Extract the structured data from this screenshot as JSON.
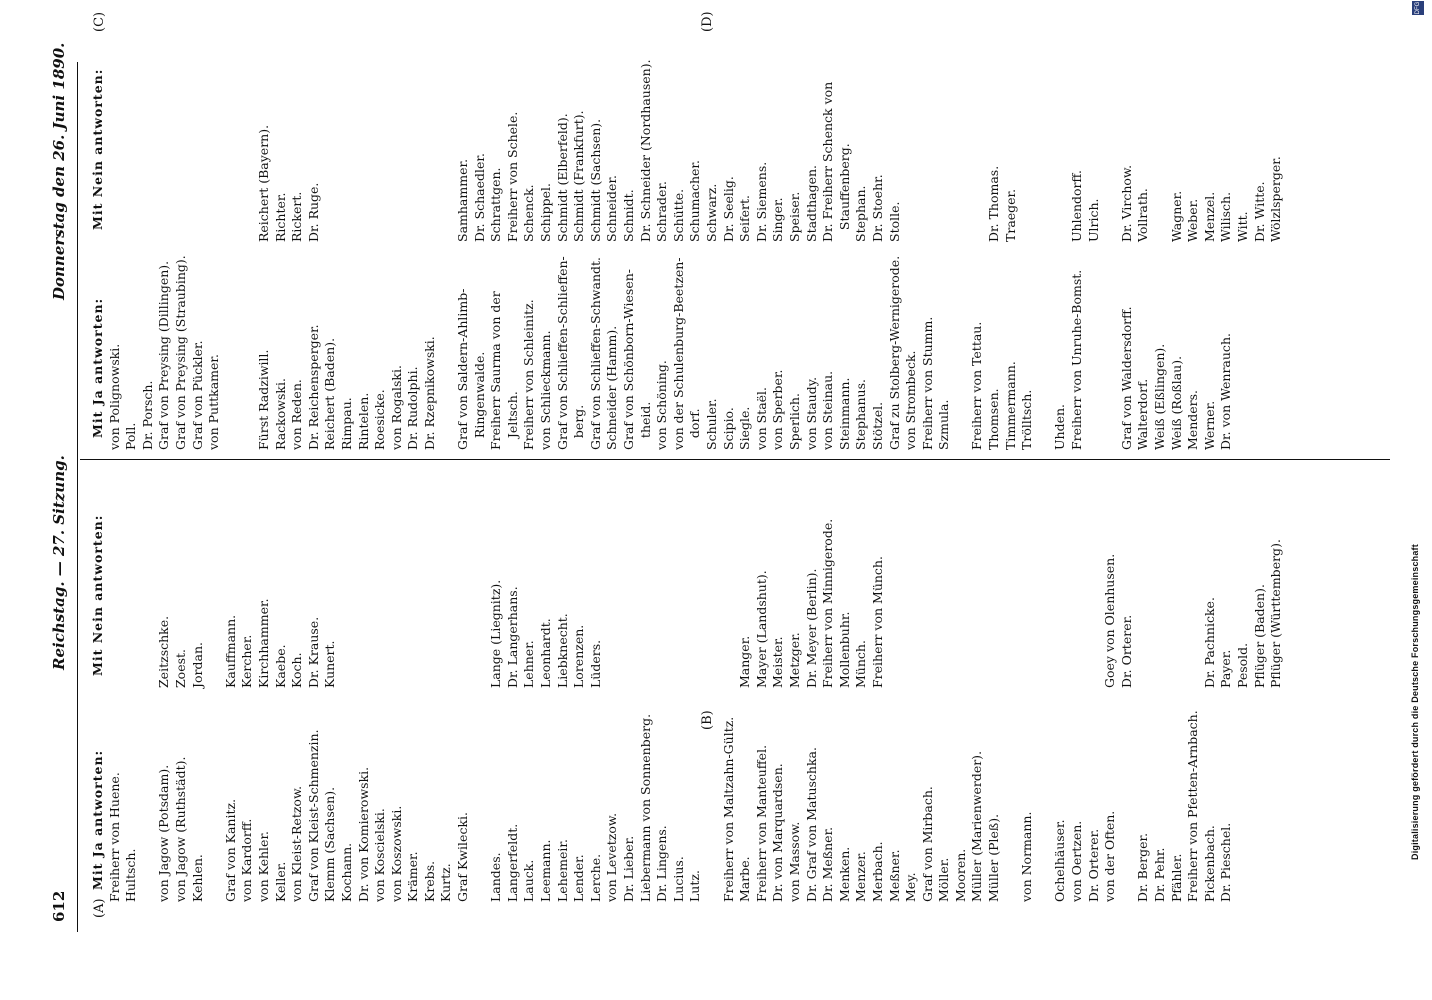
{
  "header": {
    "page_number": "612",
    "running_head": "Reichstag. — 27. Sitzung.",
    "date": "Donnerstag den 26. Juni 1890."
  },
  "markers": {
    "a": "(A)",
    "b": "(B)",
    "c": "(C)",
    "d": "(D)"
  },
  "columns": [
    {
      "heading": "Mit Ja antworten:",
      "lines": [
        "Freiherr von Huene.",
        "Hultsch.",
        "",
        "von Jagow (Potsdam).",
        "von Jagow (Ruthstädt).",
        "Kehlen.",
        "",
        "Graf von Kanitz.",
        "von Kardorff.",
        "von Kehler.",
        "Keller.",
        "von Kleist-Retzow.",
        "Graf von Kleist-Schmenzin.",
        "Klemm (Sachsen).",
        "Kochann.",
        "Dr. von Komierowski.",
        "von Koscielski.",
        "von Koszowski.",
        "Krämer.",
        "Krebs.",
        "Kurtz.",
        "Graf Kwilecki.",
        "",
        "Landes.",
        "Langerfeldt.",
        "Lauck.",
        "Leemann.",
        "Lehemeir.",
        "Lender.",
        "Lerche.",
        "von Levetzow.",
        "Dr. Lieber.",
        "Liebermann von Sonnenberg.",
        "Dr. Lingens.",
        "Lucius.",
        "Lutz.",
        "",
        "Freiherr von Maltzahn-Gültz.",
        "Marbe.",
        "Freiherr von Manteuffel.",
        "Dr. von Marquardsen.",
        "von Massow.",
        "Dr. Graf von Matuschka.",
        "Dr. Meßner.",
        "Menken.",
        "Menzer.",
        "Merbach.",
        "Meßner.",
        "Mey.",
        "Graf von Mirbach.",
        "Möller.",
        "Mooren.",
        "Müller (Marienwerder).",
        "Müller (Pleß).",
        "",
        "von Normann.",
        "",
        "Ochelhäuser.",
        "von Oertzen.",
        "Dr. Orterer.",
        "von der Often.",
        "",
        "Dr. Berger.",
        "Dr. Pehr.",
        "Pfähler.",
        "Freiherr von Pfetten-Arnbach.",
        "Pickenbach.",
        "Dr. Pieschel."
      ]
    },
    {
      "heading": "Mit Nein antworten:",
      "lines": [
        "",
        "",
        "",
        "Zeitzschke.",
        "Zoest.",
        "Jordan.",
        "",
        "Kauffmann.",
        "Kercher.",
        "Kirchhammer.",
        "Kaebe.",
        "Koch.",
        "Dr. Krause.",
        "Kunert.",
        "",
        "",
        "",
        "",
        "",
        "",
        "",
        "",
        "",
        "Lange (Liegnitz).",
        "Dr. Langerhans.",
        "Lehner.",
        "Leonhardt.",
        "Liebknecht.",
        "Lorenzen.",
        "Lüders.",
        "",
        "",
        "",
        "",
        "",
        "",
        "",
        "",
        "Manger.",
        "Mayer (Landshut).",
        "Meister.",
        "Metzger.",
        "Dr. Meyer (Berlin).",
        "Freiherr von Minnigerode.",
        "Mollenbuhr.",
        "Münch.",
        "Freiherr von Münch.",
        "",
        "",
        "",
        "",
        "",
        "",
        "",
        "",
        "",
        "",
        "",
        "",
        "",
        "Goey von Olenhusen.",
        "Dr. Orterer.",
        "",
        "",
        "",
        "",
        "Dr. Pachnicke.",
        "Payer.",
        "Pesold.",
        "Pflüger (Baden).",
        "Pflüger (Württemberg)."
      ]
    },
    {
      "heading": "Mit Ja antworten:",
      "lines": [
        "von Polignowski.",
        "Poll.",
        "Dr. Porsch.",
        "Graf von Preysing (Dillingen).",
        "Graf von Preysing (Straubing).",
        "Graf von Pückler.",
        "von Puttkamer.",
        "",
        "",
        "Fürst Radziwill.",
        "Rackowski.",
        "von Reden.",
        "Dr. Reichensperger.",
        "Reichert (Baden).",
        "Rimpau.",
        "Rintelen.",
        "Roesicke.",
        "von Rogalski.",
        "Dr. Rudolphi.",
        "Dr. Rzepnikowski.",
        "",
        "Graf von Saldern-Ahlimb-",
        "   Ringenwalde.",
        "Freiherr Saurma von der",
        "   Jeltsch.",
        "Freiherr von Schleinitz.",
        "von Schlieckmann.",
        "Graf von Schlieffen-Schlieffen-",
        "   berg.",
        "Graf von Schlieffen-Schwandt.",
        "Schneider (Hamm).",
        "Graf von Schönborn-Wiesen-",
        "   theid.",
        "von Schöning.",
        "von der Schulenburg-Beetzen-",
        "   dorf.",
        "Schuler.",
        "Scipio.",
        "Siegle.",
        "von Staël.",
        "von Sperber.",
        "Sperlich.",
        "von Staudy.",
        "von Steinau.",
        "Steinmann.",
        "Stephanus.",
        "Stötzel.",
        "Graf zu Stolberg-Wernigerode.",
        "von Strombeck.",
        "Freiherr von Stumm.",
        "Szmula.",
        "",
        "Freiherr von Tettau.",
        "Thomsen.",
        "Timmermann.",
        "Trölltsch.",
        "",
        "Uhden.",
        "Freiherr von Unruhe-Bomst.",
        "",
        "",
        "Graf von Waldersdorff.",
        "Walterdorf.",
        "Weiß (Eßlingen).",
        "Weiß (Roßlau).",
        "Menders.",
        "Werner.",
        "Dr. von Wenrauch."
      ]
    },
    {
      "heading": "Mit Nein antworten:",
      "lines": [
        "",
        "",
        "",
        "",
        "",
        "",
        "",
        "",
        "",
        "Reichert (Bayern).",
        "Richter.",
        "Rickert.",
        "Dr. Ruge.",
        "",
        "",
        "",
        "",
        "",
        "",
        "",
        "",
        "Samhammer.",
        "Dr. Schaedler.",
        "Schrattgen.",
        "Freiherr von Schele.",
        "Schenck.",
        "Schippel.",
        "Schmidt (Elberfeld).",
        "Schmidt (Frankfurt).",
        "Schmidt (Sachsen).",
        "Schneider.",
        "Schnidt.",
        "Dr. Schneider (Nordhausen).",
        "Schrader.",
        "Schütte.",
        "Schumacher.",
        "Schwarz.",
        "Dr. Seelig.",
        "Seifert.",
        "Dr. Siemens.",
        "Singer.",
        "Speiser.",
        "Stadthagen.",
        "Dr. Freiherr Schenck von",
        "   Stauffenberg.",
        "Stephan.",
        "Dr. Stoehr.",
        "Stolle.",
        "",
        "",
        "",
        "",
        "",
        "Dr. Thomas.",
        "Traeger.",
        "",
        "",
        "",
        "Uhlendorff.",
        "Ulrich.",
        "",
        "Dr. Virchow.",
        "Vollrath.",
        "",
        "Wagner.",
        "Weber.",
        "Menzel.",
        "Wilisch.",
        "Witt.",
        "Dr. Witte.",
        "Wölzlsperger."
      ]
    }
  ],
  "footer": {
    "digitization_credit": "Digitalisierung gefördert durch die Deutsche Forschungsgemeinschaft",
    "dfg_logo": "DFG"
  }
}
